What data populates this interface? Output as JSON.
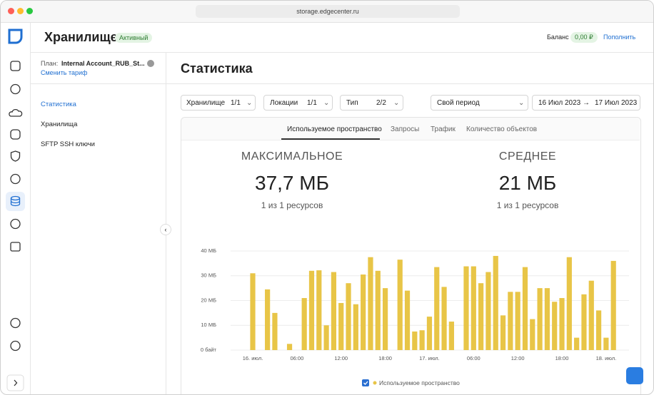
{
  "browser": {
    "url": "storage.edgecenter.ru"
  },
  "header": {
    "title": "Хранилище",
    "status": "Активный",
    "balance_label": "Баланс",
    "balance": "0,00 ₽",
    "top_up": "Пополнить"
  },
  "sidebar": {
    "plan_label": "План:",
    "plan_name": "Internal Account_RUB_St...",
    "change_plan": "Сменить тариф",
    "menu": [
      "Статистика",
      "Хранилища",
      "SFTP SSH ключи"
    ]
  },
  "page_title": "Статистика",
  "filters": [
    {
      "label": "Хранилище",
      "count": "1/1"
    },
    {
      "label": "Локации",
      "count": "1/1"
    },
    {
      "label": "Тип",
      "count": "2/2"
    }
  ],
  "period": "Свой период",
  "date_from": "16 Июл 2023",
  "date_to": "17 Июл 2023",
  "tabs": [
    "Используемое пространство",
    "Запросы",
    "Трафик",
    "Количество объектов"
  ],
  "stats": [
    {
      "title": "МАКСИМАЛЬНОЕ",
      "value": "37,7 МБ",
      "caption": "1 из 1 ресурсов"
    },
    {
      "title": "СРЕДНЕЕ",
      "value": "21 МБ",
      "caption": "1 из 1 ресурсов"
    }
  ],
  "chart_data": {
    "type": "bar",
    "categories": [
      "16. июл.",
      null,
      null,
      null,
      null,
      null,
      "06:00",
      null,
      null,
      null,
      null,
      null,
      "12:00",
      null,
      null,
      null,
      null,
      null,
      "18:00",
      null,
      null,
      null,
      null,
      null,
      "17. июл.",
      null,
      null,
      null,
      null,
      null,
      "06:00",
      null,
      null,
      null,
      null,
      null,
      "12:00",
      null,
      null,
      null,
      null,
      null,
      "18:00",
      null,
      null,
      null,
      null,
      null,
      "18. июл.",
      null
    ],
    "series": [
      {
        "name": "Используемое пространство",
        "color": "#e8c547",
        "values": [
          31,
          0,
          24.5,
          15,
          0,
          2.5,
          0,
          21,
          32,
          32.2,
          10,
          31.5,
          19,
          27,
          18.5,
          30.5,
          37.5,
          32,
          25,
          0,
          36.5,
          24,
          7.5,
          8,
          13.5,
          33.5,
          25.5,
          11.5,
          0,
          33.8,
          33.8,
          27,
          31.5,
          38,
          14,
          23.5,
          23.5,
          33.5,
          12.5,
          25,
          25,
          19.5,
          21,
          37.5,
          5,
          22.5,
          28,
          16,
          5,
          36
        ]
      }
    ],
    "ylim": [
      0,
      40
    ],
    "yticks": [
      {
        "value": 0,
        "label": "0 байт"
      },
      {
        "value": 10,
        "label": "10 МБ"
      },
      {
        "value": 20,
        "label": "20 МБ"
      },
      {
        "value": 30,
        "label": "30 МБ"
      },
      {
        "value": 40,
        "label": "40 МБ"
      }
    ],
    "grid": true
  }
}
